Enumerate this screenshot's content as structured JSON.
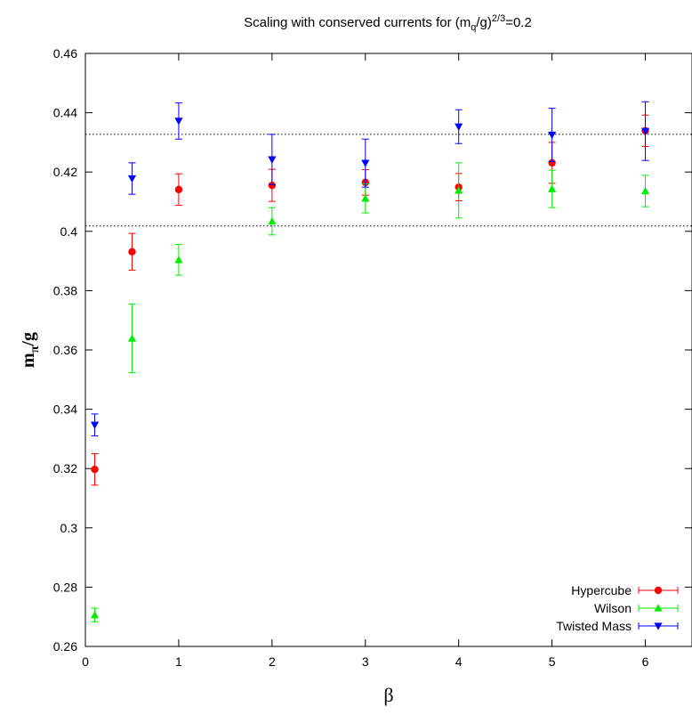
{
  "chart_data": {
    "type": "scatter",
    "title": {
      "prefix": "Scaling with conserved currents for (m",
      "sub": "q",
      "middle": "/g)",
      "sup": "2/3",
      "suffix": "=0.2"
    },
    "xlabel": "β",
    "ylabel": {
      "main": "m",
      "sub": "π",
      "rest": "/g"
    },
    "xlim": [
      0,
      6.5
    ],
    "ylim": [
      0.26,
      0.46
    ],
    "xticks": [
      "0",
      "1",
      "2",
      "3",
      "4",
      "5",
      "6"
    ],
    "yticks": [
      "0.26",
      "0.28",
      "0.3",
      "0.32",
      "0.34",
      "0.36",
      "0.38",
      "0.4",
      "0.42",
      "0.44",
      "0.46"
    ],
    "grid": false,
    "legend_position": "bottom-right",
    "reference_lines": [
      0.4327,
      0.4018
    ],
    "series": [
      {
        "name": "Hypercube",
        "color": "#ff0000",
        "marker": "circle",
        "points": [
          {
            "x": 0.1,
            "y": 0.3197,
            "err": 0.0053
          },
          {
            "x": 0.5,
            "y": 0.3931,
            "err": 0.0062
          },
          {
            "x": 1.0,
            "y": 0.4141,
            "err": 0.0053
          },
          {
            "x": 2.0,
            "y": 0.4155,
            "err": 0.0054
          },
          {
            "x": 3.0,
            "y": 0.4165,
            "err": 0.0043
          },
          {
            "x": 4.0,
            "y": 0.4149,
            "err": 0.0046
          },
          {
            "x": 5.0,
            "y": 0.4231,
            "err": 0.0069
          },
          {
            "x": 6.0,
            "y": 0.4339,
            "err": 0.0053
          }
        ]
      },
      {
        "name": "Wilson",
        "color": "#00ee00",
        "marker": "triangle-up",
        "points": [
          {
            "x": 0.1,
            "y": 0.2706,
            "err": 0.0023
          },
          {
            "x": 0.5,
            "y": 0.3639,
            "err": 0.0116
          },
          {
            "x": 1.0,
            "y": 0.3904,
            "err": 0.0052
          },
          {
            "x": 2.0,
            "y": 0.4034,
            "err": 0.0046
          },
          {
            "x": 3.0,
            "y": 0.4111,
            "err": 0.0049
          },
          {
            "x": 4.0,
            "y": 0.4138,
            "err": 0.0093
          },
          {
            "x": 5.0,
            "y": 0.4143,
            "err": 0.0063
          },
          {
            "x": 6.0,
            "y": 0.4136,
            "err": 0.0053
          }
        ]
      },
      {
        "name": "Twisted Mass",
        "color": "#0000ff",
        "marker": "triangle-down",
        "points": [
          {
            "x": 0.1,
            "y": 0.3347,
            "err": 0.0037
          },
          {
            "x": 0.5,
            "y": 0.4178,
            "err": 0.0053
          },
          {
            "x": 1.0,
            "y": 0.4372,
            "err": 0.0061
          },
          {
            "x": 2.0,
            "y": 0.4242,
            "err": 0.0085
          },
          {
            "x": 3.0,
            "y": 0.423,
            "err": 0.0081
          },
          {
            "x": 4.0,
            "y": 0.4353,
            "err": 0.0057
          },
          {
            "x": 5.0,
            "y": 0.4325,
            "err": 0.009
          },
          {
            "x": 6.0,
            "y": 0.4338,
            "err": 0.0099
          }
        ]
      }
    ]
  }
}
